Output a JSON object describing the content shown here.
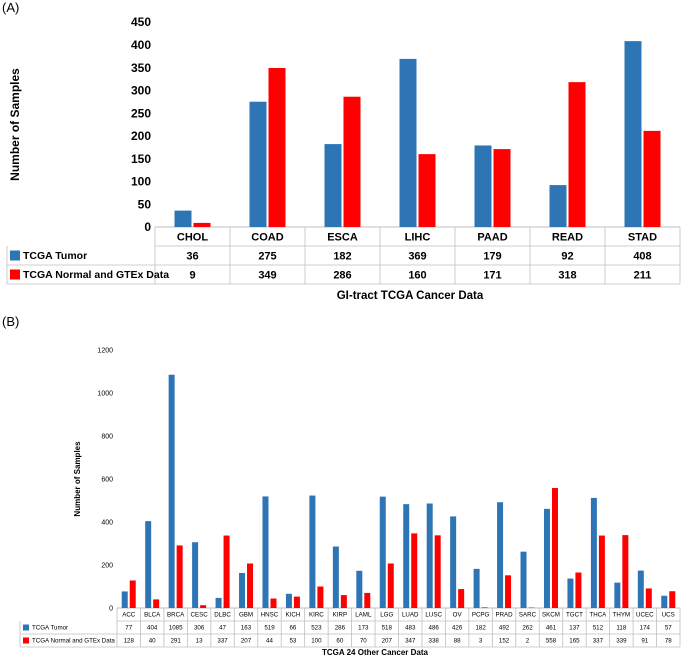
{
  "panels": {
    "a": "(A)",
    "b": "(B)"
  },
  "colors": {
    "tumor": "#2E75B6",
    "normal": "#FF0000",
    "grid": "#D9D9D9",
    "axis": "#000000"
  },
  "chart_data": [
    {
      "type": "bar",
      "title": "",
      "xlabel": "GI-tract TCGA Cancer Data",
      "ylabel": "Number of Samples",
      "ylim": [
        0,
        450
      ],
      "yticks": [
        0,
        50,
        100,
        150,
        200,
        250,
        300,
        350,
        400,
        450
      ],
      "categories": [
        "CHOL",
        "COAD",
        "ESCA",
        "LIHC",
        "PAAD",
        "READ",
        "STAD"
      ],
      "series": [
        {
          "name": "TCGA Tumor",
          "values": [
            36,
            275,
            182,
            369,
            179,
            92,
            408
          ]
        },
        {
          "name": "TCGA Normal and GTEx Data",
          "values": [
            9,
            349,
            286,
            160,
            171,
            318,
            211
          ]
        }
      ],
      "legend": "data table below plot"
    },
    {
      "type": "bar",
      "title": "",
      "xlabel": "TCGA 24 Other Cancer Data",
      "ylabel": "Number of Samples",
      "ylim": [
        0,
        1200
      ],
      "yticks": [
        0,
        200,
        400,
        600,
        800,
        1000,
        1200
      ],
      "categories": [
        "ACC",
        "BLCA",
        "BRCA",
        "CESC",
        "DLBC",
        "GBM",
        "HNSC",
        "KICH",
        "KIRC",
        "KIRP",
        "LAML",
        "LGG",
        "LUAD",
        "LUSC",
        "OV",
        "PCPG",
        "PRAD",
        "SARC",
        "SKCM",
        "TGCT",
        "THCA",
        "THYM",
        "UCEC",
        "UCS"
      ],
      "series": [
        {
          "name": "TCGA Tumor",
          "values": [
            77,
            404,
            1085,
            306,
            47,
            163,
            519,
            66,
            523,
            286,
            173,
            518,
            483,
            486,
            426,
            182,
            492,
            262,
            461,
            137,
            512,
            118,
            174,
            57
          ]
        },
        {
          "name": "TCGA Normal and GTEx Data",
          "values": [
            128,
            40,
            291,
            13,
            337,
            207,
            44,
            53,
            100,
            60,
            70,
            207,
            347,
            338,
            88,
            3,
            152,
            2,
            558,
            165,
            337,
            339,
            91,
            78
          ]
        }
      ],
      "legend": "data table below plot"
    }
  ]
}
